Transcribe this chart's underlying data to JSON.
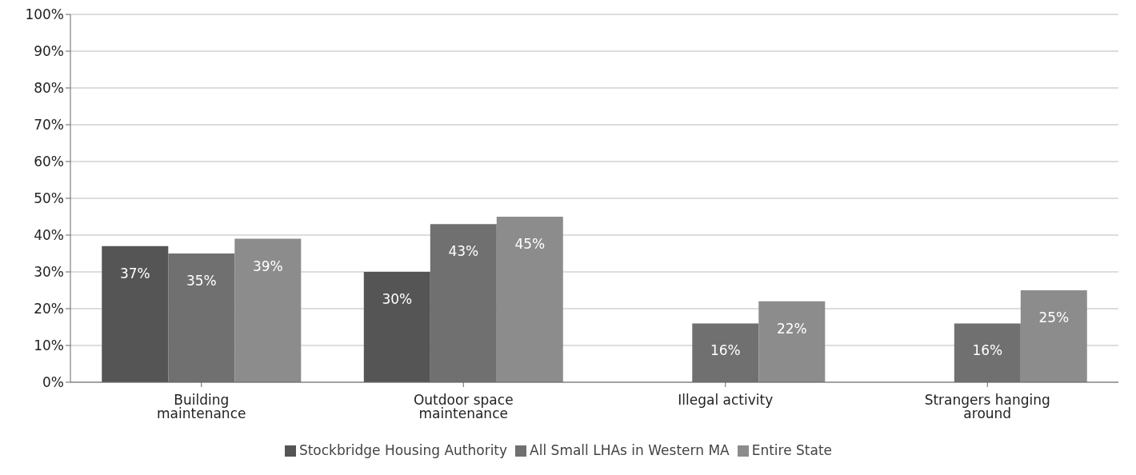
{
  "chart_data": {
    "type": "bar",
    "categories": [
      "Building maintenance",
      "Outdoor space maintenance",
      "Illegal activity",
      "Strangers hanging around"
    ],
    "series": [
      {
        "name": "Stockbridge Housing Authority",
        "color": "#555555",
        "values": [
          37,
          30,
          null,
          null
        ],
        "value_labels": [
          "37%",
          "30%",
          null,
          null
        ]
      },
      {
        "name": "All Small LHAs in Western MA",
        "color": "#707070",
        "values": [
          35,
          43,
          16,
          16
        ],
        "value_labels": [
          "35%",
          "43%",
          "16%",
          "16%"
        ]
      },
      {
        "name": "Entire State",
        "color": "#8c8c8c",
        "values": [
          39,
          45,
          22,
          25
        ],
        "value_labels": [
          "39%",
          "45%",
          "22%",
          "25%"
        ]
      }
    ],
    "ylim": [
      0,
      100
    ],
    "yticks": [
      {
        "value": 0,
        "label": "0%"
      },
      {
        "value": 10,
        "label": "10%"
      },
      {
        "value": 20,
        "label": "20%"
      },
      {
        "value": 30,
        "label": "30%"
      },
      {
        "value": 40,
        "label": "40%"
      },
      {
        "value": 50,
        "label": "50%"
      },
      {
        "value": 60,
        "label": "60%"
      },
      {
        "value": 70,
        "label": "70%"
      },
      {
        "value": 80,
        "label": "80%"
      },
      {
        "value": 90,
        "label": "90%"
      },
      {
        "value": 100,
        "label": "100%"
      }
    ],
    "grid": "y",
    "legend": "bottom"
  }
}
